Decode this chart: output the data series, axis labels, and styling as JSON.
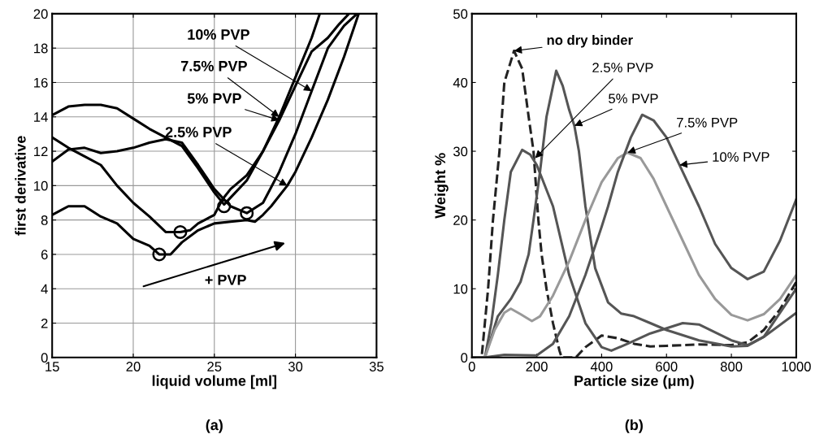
{
  "chart_data": [
    {
      "type": "line",
      "xlabel": "liquid volume [ml]",
      "ylabel": "first derivative",
      "xlim": [
        15,
        35
      ],
      "ylim": [
        0,
        20
      ],
      "xticks": [
        15,
        20,
        25,
        30,
        35
      ],
      "yticks": [
        0,
        2,
        4,
        6,
        8,
        10,
        12,
        14,
        16,
        18,
        20
      ],
      "grid": true,
      "legend": false,
      "marker": "none",
      "line_style": "solid",
      "series": [
        {
          "color": "#000000",
          "x": [
            15,
            16,
            17,
            18,
            19,
            20,
            21,
            21.6,
            22.3,
            23,
            24,
            25,
            26,
            27,
            27.5,
            28,
            28.5,
            29,
            29.5,
            30,
            31,
            32,
            33,
            33.9
          ],
          "values": [
            8.3,
            8.8,
            8.8,
            8.2,
            7.8,
            6.9,
            6.5,
            6.0,
            6.0,
            6.7,
            7.4,
            7.8,
            7.9,
            8.0,
            7.9,
            8.3,
            8.8,
            9.4,
            10.0,
            10.8,
            12.8,
            15,
            17.5,
            20
          ]
        },
        {
          "color": "#000000",
          "x": [
            15,
            16,
            17,
            18,
            19,
            20,
            21,
            22,
            22.9,
            23.5,
            24,
            25,
            25.5,
            26,
            27,
            28,
            29,
            30,
            31,
            32,
            32.7,
            33.3
          ],
          "values": [
            12.8,
            12.2,
            11.7,
            11.2,
            10.0,
            9.0,
            8.2,
            7.3,
            7.3,
            7.4,
            7.8,
            8.3,
            9.2,
            9.8,
            10.6,
            12.0,
            13.8,
            15.8,
            17.8,
            18.6,
            19.4,
            20
          ]
        },
        {
          "color": "#000000",
          "x": [
            15,
            16,
            17,
            18,
            19,
            20,
            21,
            22,
            23,
            24,
            25,
            25.6,
            26,
            27,
            28,
            29,
            30,
            31,
            31.5
          ],
          "values": [
            14.1,
            14.6,
            14.7,
            14.7,
            14.5,
            13.9,
            13.3,
            12.8,
            12.3,
            11.0,
            9.6,
            8.9,
            9.3,
            10.3,
            12.0,
            14.0,
            16.3,
            18.6,
            20
          ]
        },
        {
          "color": "#000000",
          "x": [
            15,
            16,
            17,
            18,
            19,
            20,
            21,
            22,
            23,
            24,
            25,
            26,
            27,
            28,
            29,
            30,
            31,
            32,
            33,
            33.8
          ],
          "values": [
            11.4,
            12.1,
            12.2,
            11.9,
            12.0,
            12.2,
            12.5,
            12.7,
            12.5,
            11.2,
            9.8,
            8.8,
            8.4,
            9.0,
            10.8,
            13.0,
            15.5,
            18.0,
            19.3,
            20
          ]
        },
        {
          "type": "scatter",
          "marker": "circle",
          "color": "#000000",
          "x": [
            21.6,
            22.9,
            25.6,
            27.0
          ],
          "values": [
            6.0,
            7.3,
            8.8,
            8.4
          ]
        }
      ],
      "annotations": [
        {
          "text": "10% PVP",
          "x": 31,
          "y": 15.5
        },
        {
          "text": "7.5% PVP",
          "x": 29,
          "y": 14.0
        },
        {
          "text": "5% PVP",
          "x": 29,
          "y": 13.8
        },
        {
          "text": "2.5% PVP",
          "x": 29.5,
          "y": 10.0
        },
        "+ PVP",
        "(a)"
      ]
    },
    {
      "type": "line",
      "xlabel": "Particle size (μm)",
      "ylabel": "Weight %",
      "xlim": [
        0,
        1000
      ],
      "ylim": [
        0,
        50
      ],
      "xticks": [
        0,
        200,
        400,
        600,
        800,
        1000
      ],
      "yticks": [
        0,
        10,
        20,
        30,
        40,
        50
      ],
      "grid": false,
      "legend": false,
      "marker": "none",
      "series": [
        {
          "color": "#222222",
          "line_style": "dashed",
          "x": [
            0,
            30,
            50,
            65,
            85,
            100,
            130,
            155,
            175,
            190,
            205,
            215,
            230,
            250,
            270,
            277,
            320,
            350,
            400,
            450,
            500,
            550,
            600,
            700,
            800,
            850,
            900,
            950,
            1000
          ],
          "values": [
            0,
            0,
            10,
            20,
            30,
            40,
            44.6,
            42,
            35,
            30,
            20,
            15,
            10,
            5,
            1,
            0,
            0,
            1.5,
            3.2,
            2.8,
            2,
            1.6,
            1.7,
            1.9,
            1.8,
            2.2,
            4,
            7,
            11
          ]
        },
        {
          "color": "#555555",
          "line_style": "solid",
          "x": [
            0,
            40,
            60,
            80,
            100,
            120,
            155,
            180,
            200,
            250,
            300,
            350,
            400,
            430,
            480,
            550,
            650,
            700,
            800,
            850,
            900,
            1000
          ],
          "values": [
            0,
            0,
            5,
            12,
            20,
            27,
            30.2,
            29.5,
            28,
            22,
            12,
            5,
            1.5,
            1,
            2,
            3.5,
            5,
            4.8,
            2.5,
            1.8,
            3,
            6.5
          ]
        },
        {
          "color": "#555555",
          "line_style": "solid",
          "x": [
            0,
            40,
            60,
            80,
            120,
            150,
            175,
            190,
            210,
            230,
            260,
            280,
            300,
            316,
            330,
            350,
            380,
            420,
            460,
            500,
            550,
            600,
            700,
            800,
            850,
            900,
            1000
          ],
          "values": [
            0,
            0,
            3,
            6,
            8.5,
            11,
            15,
            20,
            27,
            35,
            41.7,
            39.5,
            36,
            33.7,
            30,
            22,
            13,
            8,
            6.4,
            6,
            5,
            4,
            2.5,
            1.6,
            1.7,
            3,
            10
          ]
        },
        {
          "color": "#999999",
          "line_style": "solid",
          "x": [
            0,
            40,
            70,
            100,
            120,
            150,
            185,
            210,
            250,
            300,
            350,
            400,
            450,
            480,
            520,
            560,
            600,
            650,
            700,
            750,
            800,
            850,
            900,
            950,
            1000
          ],
          "values": [
            0,
            0,
            4,
            6.5,
            7.1,
            6.3,
            5.3,
            6,
            9,
            14,
            20,
            25.5,
            29,
            29.8,
            29,
            26,
            22,
            17,
            12,
            8.5,
            6.2,
            5.4,
            6.3,
            8.5,
            12
          ]
        },
        {
          "color": "#555555",
          "line_style": "solid",
          "x": [
            0,
            40,
            100,
            200,
            250,
            300,
            350,
            400,
            420,
            450,
            490,
            525,
            560,
            600,
            650,
            700,
            750,
            800,
            850,
            900,
            950,
            1000
          ],
          "values": [
            0,
            0,
            0.4,
            0.3,
            2,
            6,
            12,
            19,
            22,
            27,
            32,
            35.3,
            34.5,
            32,
            27,
            22,
            16.5,
            13,
            11.4,
            12.5,
            17,
            23
          ]
        }
      ],
      "annotations": [
        {
          "text": "no dry binder",
          "x": 130,
          "y": 44.6
        },
        {
          "text": "2.5% PVP",
          "x": 195,
          "y": 29
        },
        {
          "text": "5% PVP",
          "x": 316,
          "y": 33.7
        },
        {
          "text": "7.5% PVP",
          "x": 480,
          "y": 29.8
        },
        {
          "text": "10% PVP",
          "x": 640,
          "y": 28
        },
        "(b)"
      ]
    }
  ]
}
